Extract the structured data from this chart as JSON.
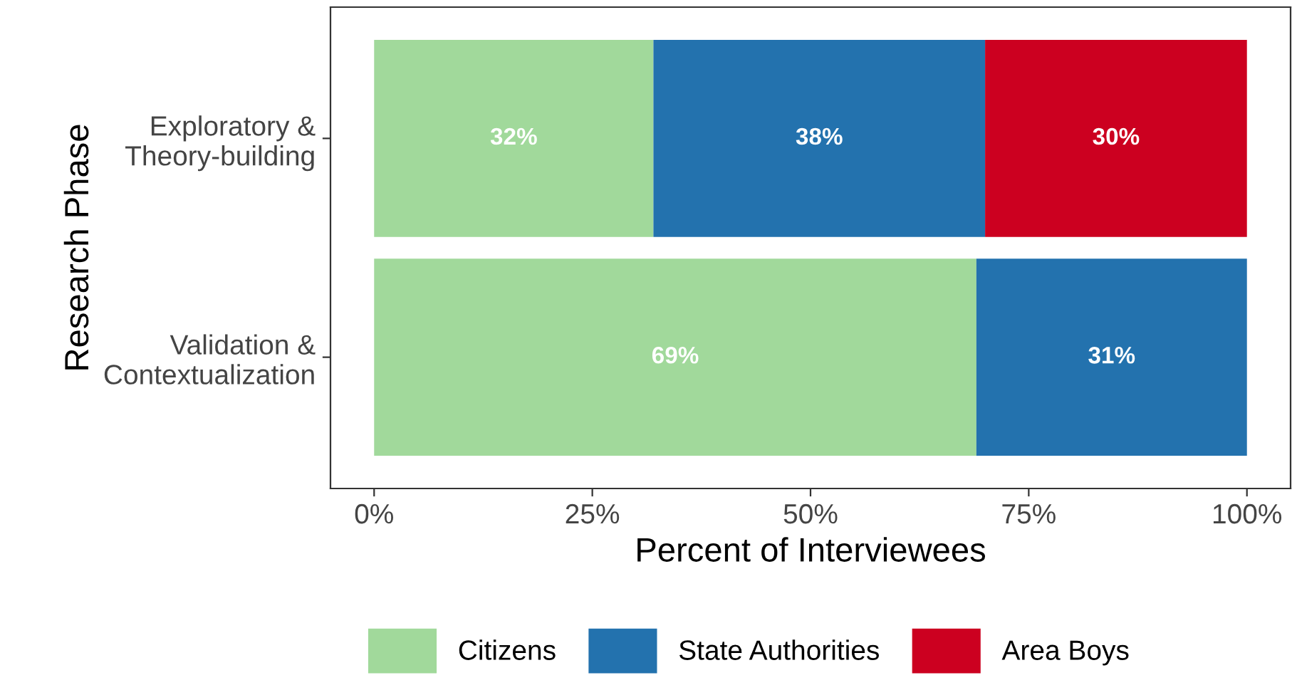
{
  "chart_data": {
    "type": "bar",
    "orientation": "horizontal",
    "stacked": true,
    "categories": [
      "Exploratory &\nTheory-building",
      "Validation &\nContextualization"
    ],
    "series": [
      {
        "name": "Citizens",
        "color": "#a1d99b",
        "values": [
          32,
          69
        ],
        "value_labels": [
          "32%",
          "69%"
        ]
      },
      {
        "name": "State Authorities",
        "color": "#2372ae",
        "values": [
          38,
          31
        ],
        "value_labels": [
          "38%",
          "31%"
        ]
      },
      {
        "name": "Area Boys",
        "color": "#cc0020",
        "values": [
          30,
          null
        ],
        "value_labels": [
          "30%",
          null
        ]
      }
    ],
    "xlabel": "Percent of Interviewees",
    "ylabel": "Research Phase",
    "xlim": [
      -5,
      105
    ],
    "xticks": [
      {
        "value": 0,
        "label": "0%"
      },
      {
        "value": 25,
        "label": "25%"
      },
      {
        "value": 50,
        "label": "50%"
      },
      {
        "value": 75,
        "label": "75%"
      },
      {
        "value": 100,
        "label": "100%"
      }
    ],
    "grid": false,
    "legend": "bottom"
  }
}
